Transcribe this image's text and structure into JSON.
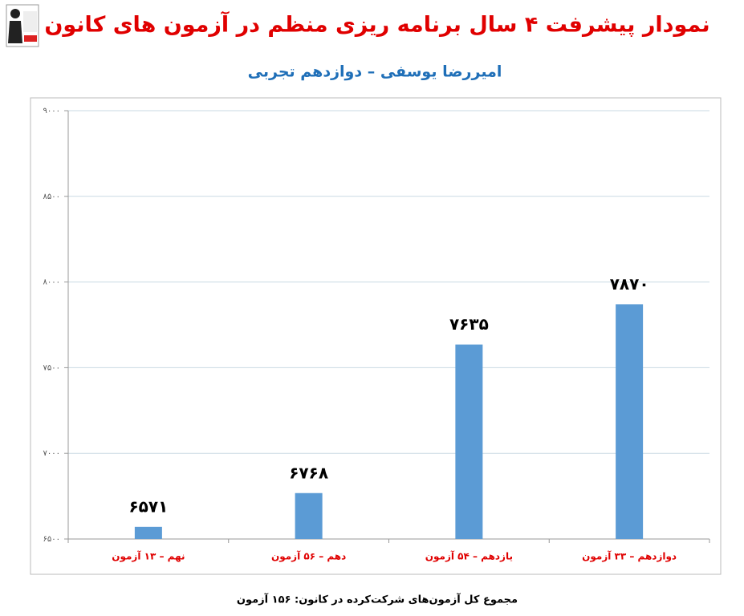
{
  "chart_data": {
    "type": "bar",
    "title": "نمودار پیشرفت ۴ سال برنامه ریزی منظم در آزمون های کانون",
    "subtitle": "امیررضا یوسفی – دوازدهم تجربی",
    "categories": [
      "نهم – ۱۳ آزمون",
      "دهم – ۵۶ آزمون",
      "یازدهم – ۵۴ آزمون",
      "دوازدهم – ۳۳ آزمون"
    ],
    "values": [
      6571,
      6768,
      7635,
      7870
    ],
    "value_labels": [
      "۶۵۷۱",
      "۶۷۶۸",
      "۷۶۳۵",
      "۷۸۷۰"
    ],
    "color": "#5b9bd5",
    "ylim": [
      6500,
      9000
    ],
    "yticks": [
      {
        "value": 6500,
        "label": "۶۵۰۰"
      },
      {
        "value": 7000,
        "label": "۷۰۰۰"
      },
      {
        "value": 7500,
        "label": "۷۵۰۰"
      },
      {
        "value": 8000,
        "label": "۸۰۰۰"
      },
      {
        "value": 8500,
        "label": "۸۵۰۰"
      },
      {
        "value": 9000,
        "label": "۹۰۰۰"
      }
    ],
    "grid": true,
    "footnote": "مجموع کل آزمون‌های شرکت‌کرده در کانون: ۱۵۶ آزمون"
  }
}
